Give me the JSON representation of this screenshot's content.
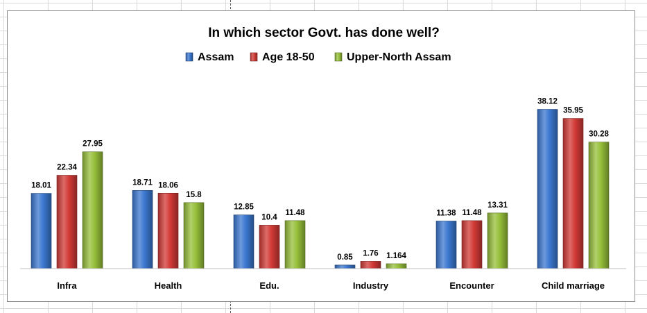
{
  "chart_data": {
    "type": "bar",
    "title": "In which sector Govt. has done well?",
    "categories": [
      "Infra",
      "Health",
      "Edu.",
      "Industry",
      "Encounter",
      "Child marriage"
    ],
    "series": [
      {
        "name": "Assam",
        "values": [
          18.01,
          18.71,
          12.85,
          0.85,
          11.38,
          38.12
        ],
        "labels": [
          "18.01",
          "18.71",
          "12.85",
          "0.85",
          "11.38",
          "38.12"
        ],
        "color": "#3b78d0"
      },
      {
        "name": "Age 18-50",
        "values": [
          22.34,
          18.06,
          10.4,
          1.76,
          11.48,
          35.95
        ],
        "labels": [
          "22.34",
          "18.06",
          "10.4",
          "1.76",
          "11.48",
          "35.95"
        ],
        "color": "#d23a36"
      },
      {
        "name": "Upper-North Assam",
        "values": [
          27.95,
          15.8,
          11.48,
          1.164,
          13.31,
          30.28
        ],
        "labels": [
          "27.95",
          "15.8",
          "11.48",
          "1.164",
          "13.31",
          "30.28"
        ],
        "color": "#97c03a"
      }
    ],
    "xlabel": "",
    "ylabel": "",
    "ylim": [
      0,
      40
    ],
    "legend": "top",
    "grid": false,
    "data_labels": true
  }
}
